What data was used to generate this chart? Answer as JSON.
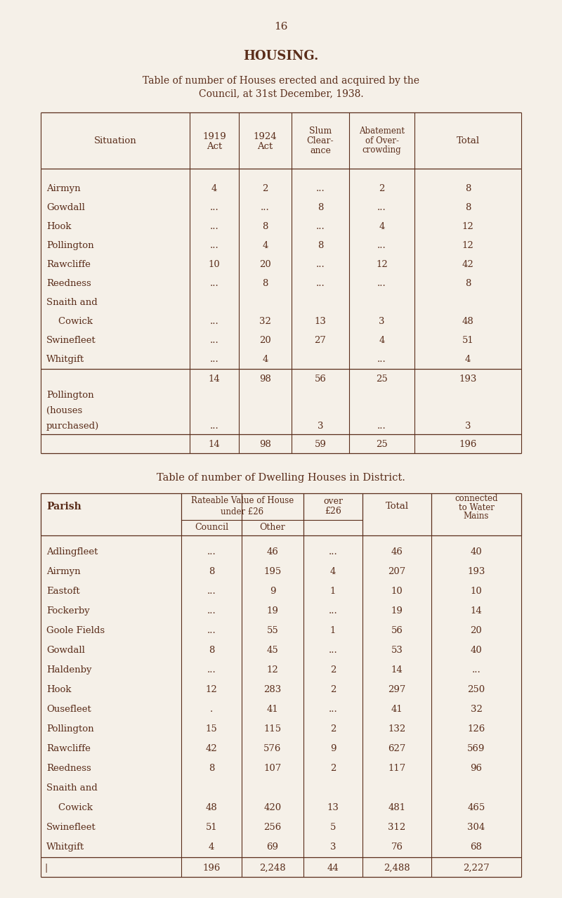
{
  "page_number": "16",
  "title": "HOUSING.",
  "subtitle1": "Table of number of Houses erected and acquired by the",
  "subtitle2": "Council, at 31st December, 1938.",
  "bg_color": "#f5f0e8",
  "text_color": "#5a2d1a",
  "table1_rows": [
    [
      "Airmyn",
      "4",
      "2",
      "...",
      "2",
      "8"
    ],
    [
      "Gowdall",
      "...",
      "...",
      "8",
      "...",
      "8"
    ],
    [
      "Hook",
      "...",
      "8",
      "...",
      "4",
      "12"
    ],
    [
      "Pollington",
      "...",
      "4",
      "8",
      "...",
      "12"
    ],
    [
      "Rawcliffe",
      "10",
      "20",
      "...",
      "12",
      "42"
    ],
    [
      "Reedness",
      "...",
      "8",
      "...",
      "...",
      "8"
    ],
    [
      "Snaith and",
      "",
      "",
      "",
      "",
      ""
    ],
    [
      "    Cowick",
      "...",
      "32",
      "13",
      "3",
      "48"
    ],
    [
      "Swinefleet",
      "...",
      "20",
      "27",
      "4",
      "51"
    ],
    [
      "Whitgift",
      "...",
      "4",
      "",
      "...",
      "4"
    ]
  ],
  "table1_subtotal": [
    "14",
    "98",
    "56",
    "25",
    "193"
  ],
  "table1_note_rows": [
    [
      "Pollington",
      "",
      "",
      "",
      "",
      ""
    ],
    [
      "(houses",
      "",
      "",
      "",
      "",
      ""
    ],
    [
      "purchased)",
      "...",
      "",
      "3",
      "...",
      "3"
    ]
  ],
  "table1_total": [
    "14",
    "98",
    "59",
    "25",
    "196"
  ],
  "table2_title": "Table of number of Dwelling Houses in District.",
  "table2_rows": [
    [
      "Adlingfleet",
      "...",
      "46",
      "...",
      "46",
      "40"
    ],
    [
      "Airmyn",
      "8",
      "195",
      "4",
      "207",
      "193"
    ],
    [
      "Eastoft",
      "...",
      "9",
      "1",
      "10",
      "10"
    ],
    [
      "Fockerby",
      "...",
      "19",
      "...",
      "19",
      "14"
    ],
    [
      "Goole Fields",
      "...",
      "55",
      "1",
      "56",
      "20"
    ],
    [
      "Gowdall",
      "8",
      "45",
      "...",
      "53",
      "40"
    ],
    [
      "Haldenby",
      "...",
      "12",
      "2",
      "14",
      "..."
    ],
    [
      "Hook",
      "12",
      "283",
      "2",
      "297",
      "250"
    ],
    [
      "Ousefleet",
      ".",
      "41",
      "...",
      "41",
      "32"
    ],
    [
      "Pollington",
      "15",
      "115",
      "2",
      "132",
      "126"
    ],
    [
      "Rawcliffe",
      "42",
      "576",
      "9",
      "627",
      "569"
    ],
    [
      "Reedness",
      "8",
      "107",
      "2",
      "117",
      "96"
    ],
    [
      "Snaith and",
      "",
      "",
      "",
      "",
      ""
    ],
    [
      "    Cowick",
      "48",
      "420",
      "13",
      "481",
      "465"
    ],
    [
      "Swinefleet",
      "51",
      "256",
      "5",
      "312",
      "304"
    ],
    [
      "Whitgift",
      "4",
      "69",
      "3",
      "76",
      "68"
    ]
  ],
  "table2_total": [
    "196",
    "2,248",
    "44",
    "2,488",
    "2,227"
  ]
}
